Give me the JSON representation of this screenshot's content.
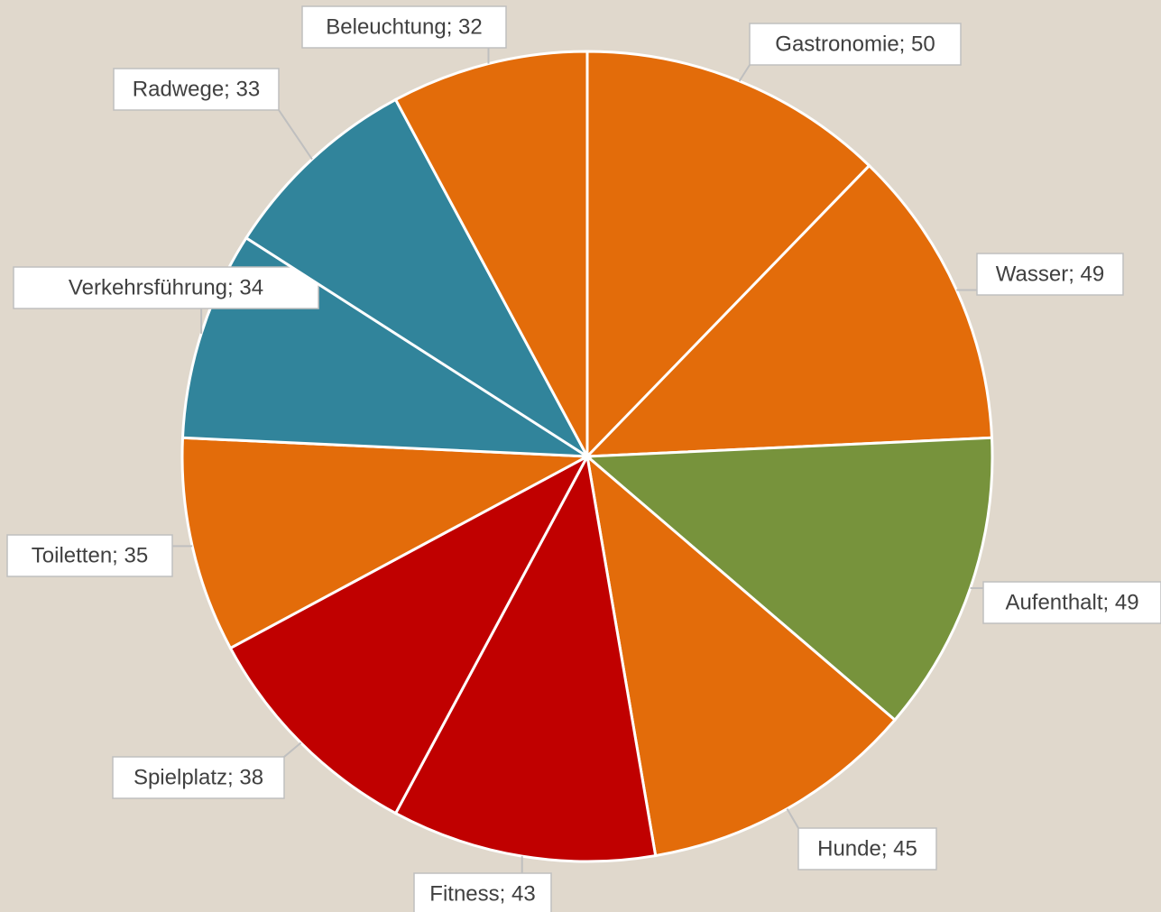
{
  "chart_data": {
    "type": "pie",
    "values": [
      50,
      49,
      49,
      45,
      43,
      38,
      35,
      34,
      33,
      32
    ],
    "value_labels": [
      "Gastronomie; 50",
      "Wasser; 49",
      "Aufenthalt; 49",
      "Hunde; 45",
      "Fitness; 43",
      "Spielplatz; 38",
      "Toiletten; 35",
      "Verkehrsführung; 34",
      "Radwege; 33",
      "Beleuchtung; 32"
    ],
    "colors": [
      "#e36c0a",
      "#e36c0a",
      "#77933c",
      "#e36c0a",
      "#c00000",
      "#c00000",
      "#e36c0a",
      "#31849b",
      "#31849b",
      "#e36c0a"
    ]
  }
}
